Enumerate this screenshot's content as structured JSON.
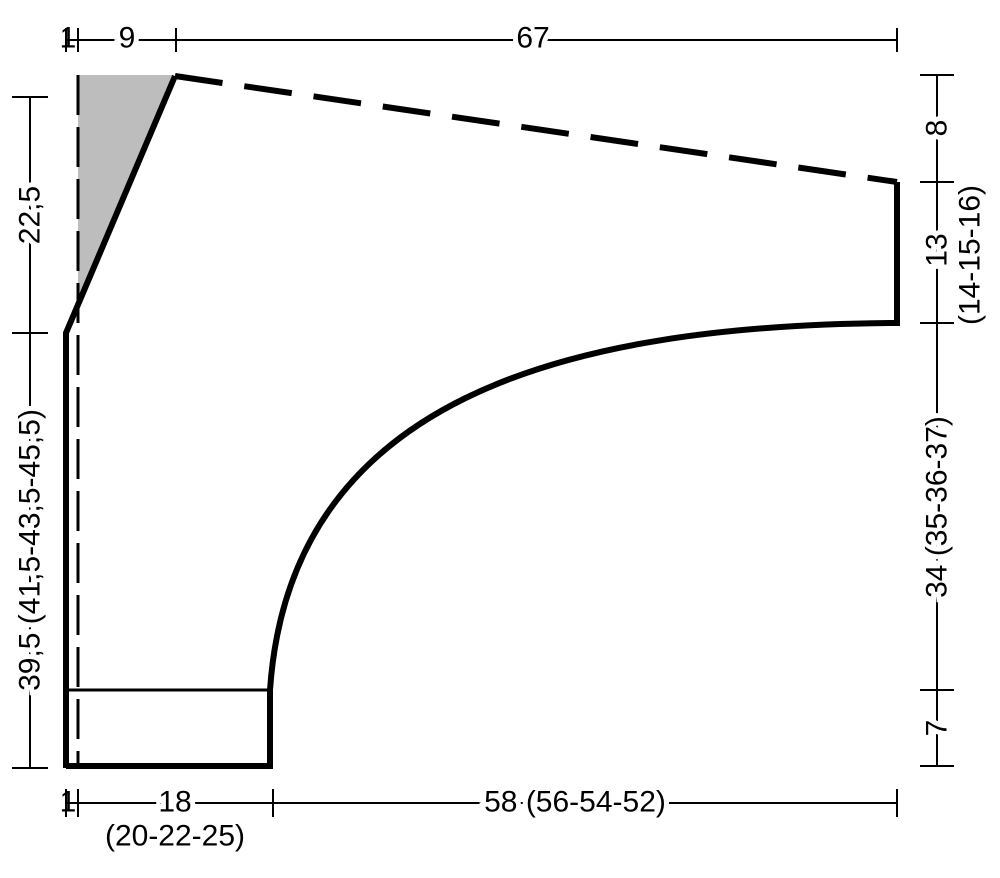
{
  "top": {
    "left": "1",
    "middle": "9",
    "right": "67"
  },
  "left": {
    "upper": "22,5",
    "lower": "39,5 (41,5-43,5-45,5)"
  },
  "right": {
    "top": "8",
    "upper": "13",
    "upper_alt": "(14-15-16)",
    "middle": "34 (35-36-37)",
    "bottom": "7"
  },
  "bottom": {
    "left": "1",
    "middle": "18",
    "middle_alt": "(20-22-25)",
    "right": "58 (56-54-52)"
  }
}
